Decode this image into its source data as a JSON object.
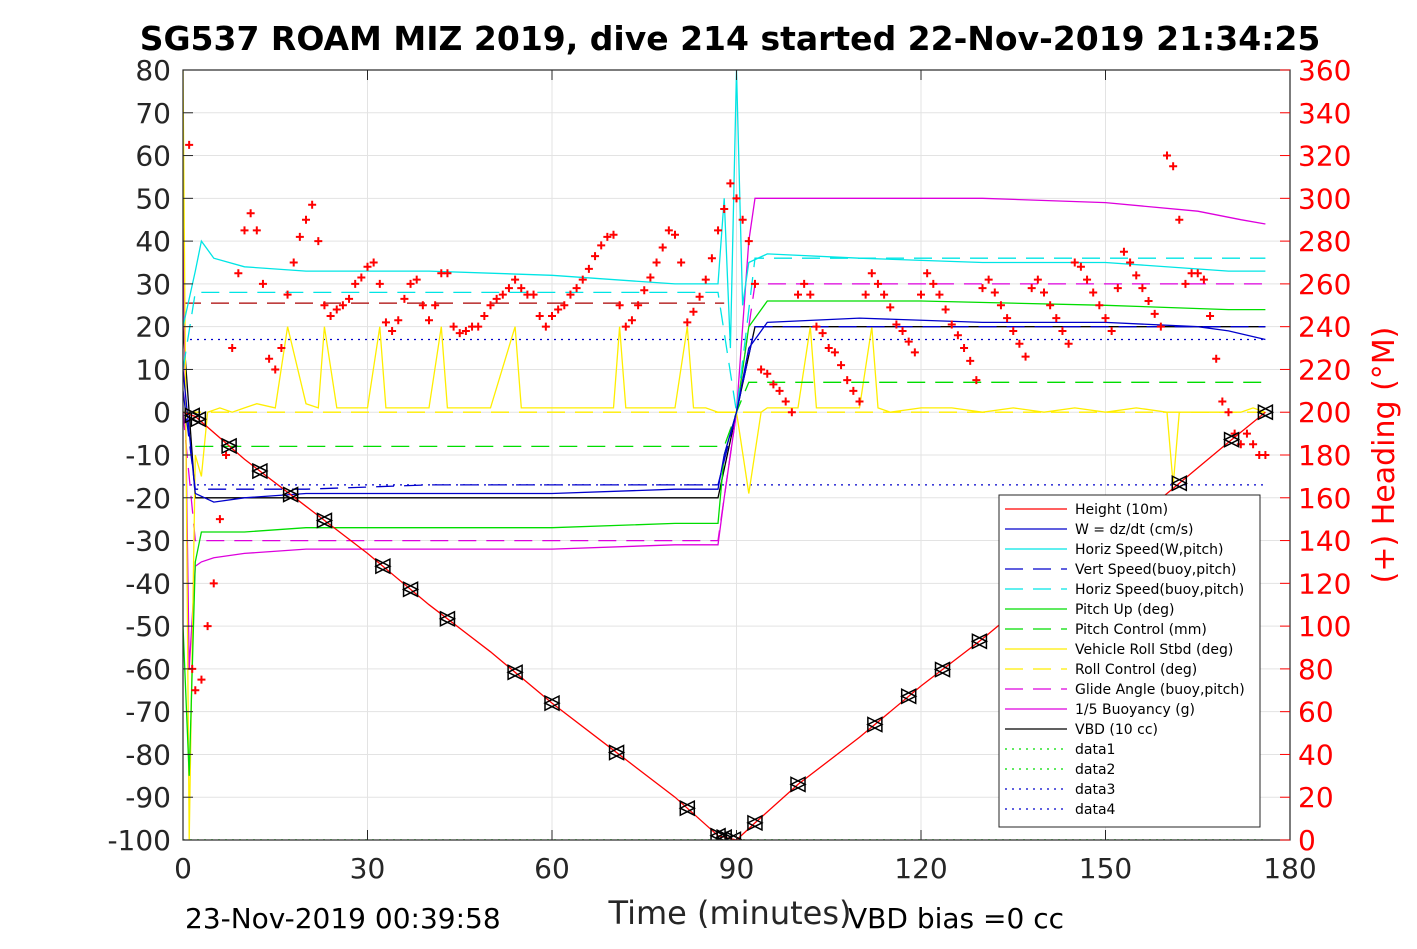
{
  "chart_data": {
    "type": "line",
    "title": "SG537 ROAM MIZ 2019, dive 214 started 22-Nov-2019 21:34:25",
    "xlabel": "Time (minutes)",
    "ylabel": "",
    "ylabel_right": "(+) Heading (°M)",
    "xlim": [
      0,
      180
    ],
    "ylim": [
      -100,
      80
    ],
    "ylim_right": [
      0,
      360
    ],
    "x_ticks": [
      0,
      30,
      60,
      90,
      120,
      150,
      180
    ],
    "y_ticks": [
      80,
      70,
      60,
      50,
      40,
      30,
      20,
      10,
      0,
      -10,
      -20,
      -30,
      -40,
      -50,
      -60,
      -70,
      -80,
      -90,
      -100
    ],
    "y_ticks_right": [
      360,
      340,
      320,
      300,
      280,
      260,
      240,
      220,
      200,
      180,
      160,
      140,
      120,
      100,
      80,
      60,
      40,
      20,
      0
    ],
    "grid": true,
    "legend_position": "bottom-right",
    "footer_left": "23-Nov-2019 00:39:58",
    "footer_right": "VBD bias =0 cc",
    "series": [
      {
        "name": "Height (10m)",
        "color": "#ff0000",
        "style": "solid",
        "x": [
          0,
          2,
          10,
          20,
          30,
          40,
          50,
          60,
          70,
          80,
          87,
          90,
          93,
          100,
          110,
          120,
          130,
          140,
          150,
          160,
          170,
          176
        ],
        "y": [
          0,
          -1,
          -11,
          -22,
          -33,
          -45,
          -56,
          -68,
          -79,
          -90,
          -99,
          -100,
          -96,
          -87,
          -76,
          -64,
          -53,
          -41,
          -30,
          -19,
          -7,
          0
        ]
      },
      {
        "name": "W = dz/dt (cm/s)",
        "color": "#0000cc",
        "style": "solid",
        "x": [
          0,
          2,
          5,
          10,
          20,
          40,
          60,
          80,
          87,
          88,
          90,
          92,
          95,
          110,
          130,
          150,
          165,
          170,
          176
        ],
        "y": [
          10,
          -19,
          -21,
          -20,
          -19,
          -19,
          -19,
          -18,
          -18,
          -10,
          0,
          15,
          21,
          22,
          21,
          21,
          20,
          19,
          17
        ]
      },
      {
        "name": "Horiz Speed(W,pitch)",
        "color": "#00e5e5",
        "style": "solid",
        "x": [
          0,
          2,
          3,
          5,
          10,
          20,
          40,
          60,
          80,
          87,
          88,
          89,
          90,
          91,
          92,
          95,
          110,
          130,
          150,
          170,
          176
        ],
        "y": [
          20,
          33,
          40,
          36,
          34,
          33,
          33,
          32,
          30,
          30,
          50,
          15,
          80,
          25,
          35,
          37,
          36,
          35,
          35,
          33,
          33
        ]
      },
      {
        "name": "Vert Speed(buoy,pitch)",
        "color": "#0000cc",
        "style": "dash",
        "x": [
          0,
          2,
          5,
          20,
          40,
          60,
          80,
          87,
          90,
          93,
          95,
          120,
          150,
          176
        ],
        "y": [
          5,
          -18,
          -18,
          -18,
          -17,
          -17,
          -17,
          -17,
          0,
          20,
          20,
          20,
          20,
          20
        ]
      },
      {
        "name": "Horiz Speed(buoy,pitch)",
        "color": "#00e5e5",
        "style": "dash",
        "x": [
          0,
          2,
          5,
          20,
          40,
          60,
          80,
          87,
          90,
          93,
          95,
          120,
          150,
          176
        ],
        "y": [
          10,
          28,
          28,
          28,
          28,
          28,
          28,
          28,
          0,
          36,
          36,
          36,
          36,
          36
        ]
      },
      {
        "name": "Pitch Up (deg)",
        "color": "#00dd00",
        "style": "solid",
        "x": [
          0,
          1,
          2,
          3,
          5,
          10,
          20,
          40,
          60,
          80,
          87,
          88,
          90,
          92,
          95,
          120,
          150,
          170,
          176
        ],
        "y": [
          -50,
          -85,
          -35,
          -28,
          -28,
          -28,
          -27,
          -27,
          -27,
          -26,
          -26,
          -10,
          0,
          20,
          26,
          26,
          25,
          24,
          24
        ]
      },
      {
        "name": "Pitch Control (mm)",
        "color": "#00dd00",
        "style": "dash",
        "x": [
          2,
          20,
          40,
          60,
          87,
          88,
          90,
          92,
          120,
          150,
          176
        ],
        "y": [
          -8,
          -8,
          -8,
          -8,
          -8,
          -8,
          0,
          7,
          7,
          7,
          7
        ]
      },
      {
        "name": "Vehicle Roll Stbd (deg)",
        "color": "#ffee00",
        "style": "solid",
        "x": [
          0,
          1,
          2,
          3,
          4,
          6,
          8,
          10,
          12,
          15,
          17,
          20,
          22,
          23,
          25,
          30,
          32,
          33,
          35,
          40,
          42,
          43,
          45,
          50,
          54,
          55,
          57,
          60,
          65,
          70,
          71,
          72,
          75,
          80,
          82,
          83,
          85,
          87,
          90,
          92,
          94,
          95,
          97,
          100,
          102,
          103,
          105,
          110,
          112,
          113,
          115,
          120,
          125,
          130,
          135,
          140,
          145,
          150,
          155,
          160,
          161,
          162,
          163,
          165,
          170,
          172,
          174,
          176
        ],
        "y": [
          80,
          -100,
          -10,
          -15,
          0,
          1,
          0,
          1,
          2,
          1,
          20,
          2,
          1,
          20,
          1,
          1,
          20,
          1,
          1,
          1,
          20,
          1,
          1,
          1,
          20,
          1,
          1,
          1,
          1,
          1,
          20,
          1,
          1,
          1,
          20,
          1,
          1,
          0,
          0,
          -19,
          0,
          1,
          1,
          1,
          20,
          1,
          1,
          1,
          20,
          1,
          0,
          1,
          1,
          0,
          1,
          0,
          1,
          0,
          1,
          0,
          -17,
          0,
          0,
          0,
          0,
          0,
          1,
          0
        ]
      },
      {
        "name": "Roll Control (deg)",
        "color": "#ffee00",
        "style": "dash",
        "x": [
          0,
          176
        ],
        "y": [
          0,
          0
        ]
      },
      {
        "name": "Glide Angle (buoy,pitch)",
        "color": "#dd00dd",
        "style": "dash",
        "x": [
          0,
          2,
          5,
          20,
          40,
          60,
          87,
          90,
          93,
          95,
          120,
          150,
          176
        ],
        "y": [
          0,
          -30,
          -30,
          -30,
          -30,
          -30,
          -30,
          0,
          30,
          30,
          30,
          30,
          30
        ]
      },
      {
        "name": "1/5 Buoyancy (g)",
        "color": "#dd00dd",
        "style": "solid",
        "x": [
          0,
          1,
          2,
          3,
          5,
          10,
          20,
          40,
          60,
          80,
          87,
          88,
          90,
          92,
          93,
          100,
          130,
          150,
          165,
          172,
          176
        ],
        "y": [
          43,
          -60,
          -36,
          -35,
          -34,
          -33,
          -32,
          -32,
          -32,
          -31,
          -31,
          -20,
          0,
          40,
          50,
          50,
          50,
          49,
          47,
          45,
          44
        ]
      },
      {
        "name": "VBD (10 cc)",
        "color": "#000000",
        "style": "solid",
        "x": [
          0,
          2,
          5,
          20,
          40,
          60,
          80,
          87,
          90,
          93,
          95,
          120,
          150,
          176
        ],
        "y": [
          20,
          -20,
          -20,
          -20,
          -20,
          -20,
          -20,
          -20,
          0,
          20,
          20,
          20,
          20,
          20
        ]
      },
      {
        "name": "data1",
        "color": "#00dd00",
        "style": "dot",
        "x": [
          0,
          176
        ],
        "y": [
          -100,
          -100
        ]
      },
      {
        "name": "data2",
        "color": "#00dd00",
        "style": "dot",
        "x": [
          0,
          176
        ],
        "y": [
          -100,
          -100
        ]
      },
      {
        "name": "data3",
        "color": "#0000cc",
        "style": "dot",
        "x": [
          0,
          176
        ],
        "y": [
          17,
          17
        ]
      },
      {
        "name": "data4",
        "color": "#0000cc",
        "style": "dot",
        "x": [
          0,
          176
        ],
        "y": [
          -17,
          -17
        ]
      }
    ],
    "extra_lines": [
      {
        "color": "#aa0000",
        "style": "dash",
        "x": [
          0,
          88
        ],
        "y": [
          25.5,
          25.5
        ]
      }
    ],
    "heading": {
      "name": "(+) Heading (°M)",
      "color": "#ff0000",
      "axis": "right",
      "x": [
        1,
        1.5,
        2,
        3,
        4,
        5,
        6,
        7,
        8,
        9,
        10,
        11,
        12,
        13,
        14,
        15,
        16,
        17,
        18,
        19,
        20,
        21,
        22,
        23,
        24,
        25,
        26,
        27,
        28,
        29,
        30,
        31,
        32,
        33,
        34,
        35,
        36,
        37,
        38,
        39,
        40,
        41,
        42,
        43,
        44,
        45,
        46,
        47,
        48,
        49,
        50,
        51,
        52,
        53,
        54,
        55,
        56,
        57,
        58,
        59,
        60,
        61,
        62,
        63,
        64,
        65,
        66,
        67,
        68,
        69,
        70,
        71,
        72,
        73,
        74,
        75,
        76,
        77,
        78,
        79,
        80,
        81,
        82,
        83,
        84,
        85,
        86,
        87,
        88,
        89,
        90,
        91,
        92,
        93,
        94,
        95,
        96,
        97,
        98,
        99,
        100,
        101,
        102,
        103,
        104,
        105,
        106,
        107,
        108,
        109,
        110,
        111,
        112,
        113,
        114,
        115,
        116,
        117,
        118,
        119,
        120,
        121,
        122,
        123,
        124,
        125,
        126,
        127,
        128,
        129,
        130,
        131,
        132,
        133,
        134,
        135,
        136,
        137,
        138,
        139,
        140,
        141,
        142,
        143,
        144,
        145,
        146,
        147,
        148,
        149,
        150,
        151,
        152,
        153,
        154,
        155,
        156,
        157,
        158,
        159,
        160,
        161,
        162,
        163,
        164,
        165,
        166,
        167,
        168,
        169,
        170,
        171,
        172,
        173,
        174,
        175,
        176
      ],
      "y": [
        325,
        80,
        70,
        75,
        100,
        120,
        150,
        180,
        230,
        265,
        285,
        293,
        285,
        260,
        225,
        220,
        230,
        255,
        270,
        282,
        290,
        297,
        280,
        250,
        245,
        248,
        250,
        253,
        260,
        263,
        268,
        270,
        260,
        242,
        238,
        243,
        253,
        260,
        262,
        250,
        243,
        250,
        265,
        265,
        240,
        237,
        238,
        240,
        240,
        245,
        250,
        253,
        255,
        258,
        262,
        258,
        255,
        255,
        245,
        240,
        245,
        248,
        250,
        255,
        258,
        262,
        267,
        273,
        278,
        282,
        283,
        250,
        240,
        243,
        250,
        257,
        263,
        270,
        277,
        285,
        283,
        270,
        242,
        247,
        254,
        262,
        272,
        285,
        295,
        307,
        300,
        290,
        280,
        260,
        220,
        218,
        213,
        210,
        205,
        200,
        255,
        260,
        255,
        240,
        237,
        230,
        228,
        222,
        215,
        210,
        205,
        255,
        265,
        260,
        255,
        249,
        241,
        238,
        233,
        228,
        255,
        265,
        260,
        255,
        248,
        241,
        236,
        230,
        224,
        215,
        258,
        262,
        256,
        250,
        244,
        238,
        232,
        226,
        258,
        262,
        256,
        250,
        244,
        238,
        232,
        270,
        268,
        262,
        256,
        250,
        244,
        238,
        258,
        275,
        270,
        264,
        258,
        252,
        246,
        240,
        320,
        315,
        290,
        260,
        265,
        265,
        262,
        245,
        225,
        205,
        200,
        190,
        185,
        190,
        185,
        180,
        180
      ]
    },
    "markers": [
      {
        "shape": "triangle-left",
        "x": [
          1.5,
          2.5,
          7.5,
          12.5,
          17.5,
          23,
          32.5,
          37,
          43,
          54,
          60,
          70.5,
          82,
          87,
          88,
          89.5,
          93,
          100,
          112.5,
          118,
          123.5,
          129.5,
          162,
          170.5,
          176
        ]
      },
      {
        "shape": "triangle-right",
        "x": [
          1.5,
          2.5,
          7.5,
          12.5,
          17.5,
          23,
          32.5,
          37,
          43,
          54,
          60,
          70.5,
          82,
          87,
          88,
          89.5,
          93,
          100,
          112.5,
          118,
          123.5,
          129.5,
          162,
          170.5,
          176
        ]
      }
    ]
  }
}
